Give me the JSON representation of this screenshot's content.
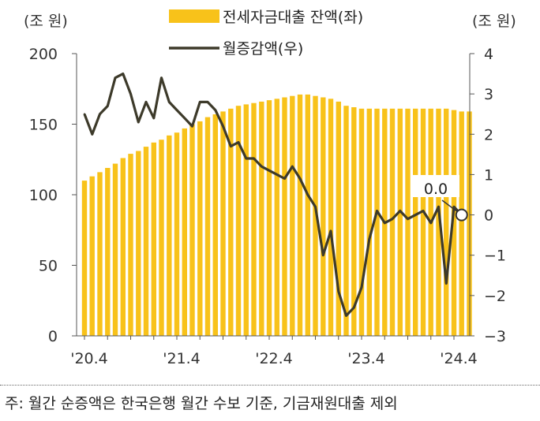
{
  "chart_data": {
    "type": "bar+line",
    "left_axis": {
      "unit_label": "(조 원)",
      "ylim": [
        0,
        200
      ],
      "ticks": [
        0,
        50,
        100,
        150,
        200
      ]
    },
    "right_axis": {
      "unit_label": "(조 원)",
      "ylim": [
        -3,
        4
      ],
      "ticks": [
        -3,
        -2,
        -1,
        0,
        1,
        2,
        3,
        4
      ],
      "tick_labels": [
        "−3",
        "−2",
        "−1",
        "0",
        "1",
        "2",
        "3",
        "4"
      ]
    },
    "x_tick_labels": [
      "'20.4",
      "'21.4",
      "'22.4",
      "'23.4",
      "'24.4"
    ],
    "x_tick_indices": [
      0,
      12,
      24,
      36,
      48
    ],
    "legend": [
      {
        "name": "전세자금대출 잔액(좌)",
        "kind": "bar",
        "color": "#F8C21A"
      },
      {
        "name": "월증감액(우)",
        "kind": "line",
        "color": "#3D3A2A"
      }
    ],
    "series": [
      {
        "name": "전세자금대출 잔액(좌)",
        "axis": "left",
        "values": [
          110,
          113,
          116,
          119,
          122,
          126,
          129,
          131,
          134,
          137,
          139,
          142,
          144,
          147,
          150,
          152,
          155,
          157,
          159,
          161,
          163,
          164,
          165,
          166,
          167,
          168,
          169,
          170,
          171,
          171,
          170,
          169,
          168,
          166,
          163,
          162,
          161,
          161,
          161,
          161,
          161,
          161,
          161,
          161,
          161,
          161,
          161,
          161,
          160,
          159,
          159
        ]
      },
      {
        "name": "월증감액(우)",
        "axis": "right",
        "values": [
          2.5,
          2.0,
          2.5,
          2.7,
          3.4,
          3.5,
          3.0,
          2.3,
          2.8,
          2.4,
          3.4,
          2.8,
          2.6,
          2.4,
          2.2,
          2.8,
          2.8,
          2.6,
          2.2,
          1.7,
          1.8,
          1.4,
          1.4,
          1.2,
          1.1,
          1.0,
          0.9,
          1.2,
          0.9,
          0.5,
          0.2,
          -1.0,
          -0.4,
          -1.9,
          -2.5,
          -2.3,
          -1.8,
          -0.6,
          0.1,
          -0.2,
          -0.1,
          0.1,
          -0.1,
          0.0,
          0.1,
          -0.2,
          0.2,
          -1.7,
          0.2,
          0.0
        ]
      }
    ],
    "annotation": {
      "text": "0.0",
      "value": 0.0
    }
  },
  "note": "주: 월간 순증액은 한국은행 월간 수보 기준, 기금재원대출 제외"
}
